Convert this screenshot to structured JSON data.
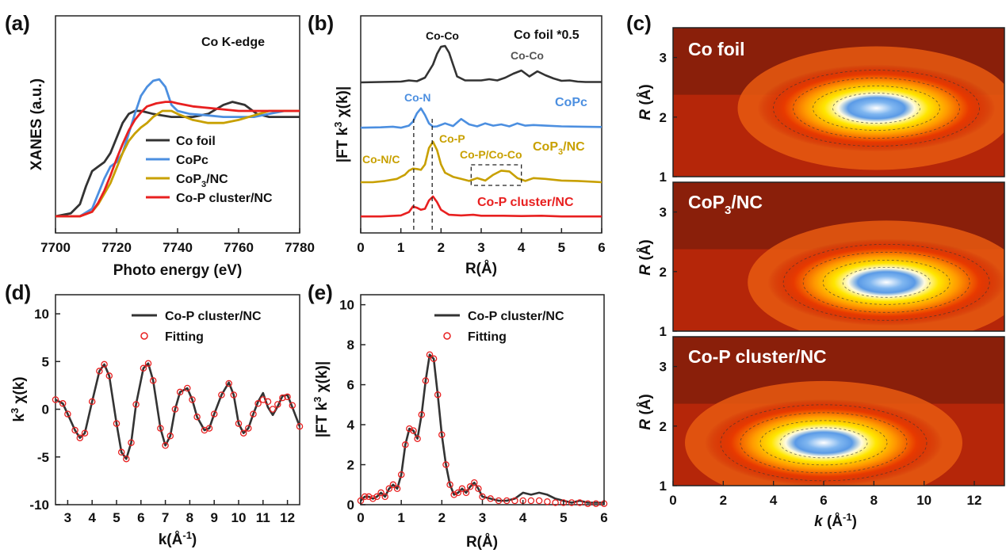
{
  "panels": {
    "a": "(a)",
    "b": "(b)",
    "c": "(c)",
    "d": "(d)",
    "e": "(e)"
  },
  "chart_data": [
    {
      "id": "a",
      "type": "line",
      "annotation": "Co K-edge",
      "xlabel": "Photo energy (eV)",
      "ylabel": "XANES (a.u.)",
      "xlim": [
        7700,
        7780
      ],
      "xticks": [
        7700,
        7720,
        7740,
        7760,
        7780
      ],
      "y_ticks_shown": false,
      "legend_position": "lower-right",
      "series": [
        {
          "name": "Co foil",
          "color": "#333333",
          "x": [
            7700,
            7705,
            7708,
            7710,
            7712,
            7714,
            7716,
            7718,
            7720,
            7722,
            7724,
            7726,
            7728,
            7730,
            7732,
            7735,
            7738,
            7740,
            7745,
            7750,
            7755,
            7758,
            7762,
            7766,
            7770,
            7775,
            7780
          ],
          "y": [
            0.0,
            0.02,
            0.08,
            0.2,
            0.3,
            0.33,
            0.36,
            0.42,
            0.52,
            0.62,
            0.68,
            0.7,
            0.7,
            0.69,
            0.68,
            0.67,
            0.66,
            0.66,
            0.66,
            0.68,
            0.74,
            0.76,
            0.74,
            0.68,
            0.66,
            0.66,
            0.66
          ]
        },
        {
          "name": "CoPc",
          "color": "#4c8fe0",
          "x": [
            7700,
            7708,
            7712,
            7714,
            7716,
            7718,
            7720,
            7722,
            7724,
            7726,
            7728,
            7730,
            7732,
            7734,
            7736,
            7738,
            7740,
            7744,
            7750,
            7755,
            7760,
            7765,
            7770,
            7775,
            7780
          ],
          "y": [
            0.0,
            0.0,
            0.05,
            0.15,
            0.25,
            0.33,
            0.36,
            0.42,
            0.55,
            0.68,
            0.8,
            0.86,
            0.9,
            0.91,
            0.86,
            0.74,
            0.7,
            0.68,
            0.67,
            0.66,
            0.66,
            0.66,
            0.68,
            0.7,
            0.7
          ]
        },
        {
          "name": "CoP3/NC",
          "color": "#c8a000",
          "x": [
            7700,
            7708,
            7712,
            7714,
            7716,
            7718,
            7720,
            7722,
            7724,
            7726,
            7728,
            7730,
            7732,
            7735,
            7738,
            7740,
            7745,
            7750,
            7755,
            7760,
            7765,
            7770,
            7775,
            7780
          ],
          "y": [
            0.0,
            0.0,
            0.03,
            0.08,
            0.15,
            0.22,
            0.32,
            0.42,
            0.5,
            0.55,
            0.59,
            0.62,
            0.66,
            0.7,
            0.7,
            0.68,
            0.64,
            0.62,
            0.62,
            0.64,
            0.67,
            0.7,
            0.7,
            0.7
          ]
        },
        {
          "name": "Co-P cluster/NC",
          "color": "#e82020",
          "x": [
            7700,
            7708,
            7712,
            7714,
            7716,
            7718,
            7720,
            7722,
            7724,
            7726,
            7728,
            7730,
            7733,
            7736,
            7738,
            7740,
            7745,
            7750,
            7755,
            7760,
            7765,
            7770,
            7775,
            7780
          ],
          "y": [
            0.0,
            0.0,
            0.03,
            0.09,
            0.17,
            0.27,
            0.38,
            0.48,
            0.57,
            0.64,
            0.69,
            0.73,
            0.75,
            0.76,
            0.76,
            0.75,
            0.73,
            0.72,
            0.71,
            0.7,
            0.7,
            0.7,
            0.7,
            0.7
          ]
        }
      ]
    },
    {
      "id": "b",
      "type": "line",
      "xlabel": "R(Å)",
      "ylabel": "|FT k3 χ(k)|",
      "xlim": [
        0,
        6
      ],
      "xticks": [
        0,
        1,
        2,
        3,
        4,
        5,
        6
      ],
      "y_ticks_shown": false,
      "dashed_lines_x": [
        1.32,
        1.78
      ],
      "dashed_box": {
        "x": [
          2.75,
          4.0
        ]
      },
      "annotations": [
        "Co-Co",
        "Co-Co",
        "Co-N",
        "Co-P",
        "Co-N/C",
        "Co-P/Co-Co"
      ],
      "series": [
        {
          "name": "Co foil *0.5",
          "color": "#333333",
          "x": [
            0,
            0.5,
            1,
            1.2,
            1.4,
            1.6,
            1.8,
            1.9,
            2.0,
            2.1,
            2.2,
            2.3,
            2.4,
            2.6,
            2.8,
            3.0,
            3.2,
            3.4,
            3.6,
            3.8,
            4.0,
            4.2,
            4.4,
            4.6,
            4.8,
            5.0,
            5.2,
            5.4,
            5.6,
            5.8,
            6.0
          ],
          "y": [
            0,
            0.01,
            0.02,
            0.05,
            0.03,
            0.12,
            0.45,
            0.72,
            0.9,
            0.92,
            0.75,
            0.45,
            0.15,
            0.05,
            0.05,
            0.05,
            0.08,
            0.05,
            0.12,
            0.22,
            0.3,
            0.15,
            0.28,
            0.18,
            0.1,
            0.04,
            0.05,
            0.02,
            0.01,
            0.01,
            0.01
          ]
        },
        {
          "name": "CoPc",
          "color": "#4c8fe0",
          "x": [
            0,
            0.5,
            0.8,
            1.0,
            1.2,
            1.3,
            1.4,
            1.5,
            1.6,
            1.7,
            1.8,
            1.9,
            2.1,
            2.3,
            2.5,
            2.7,
            2.9,
            3.1,
            3.3,
            3.5,
            3.7,
            3.9,
            4.1,
            4.3,
            4.6,
            5.0,
            5.5,
            6.0
          ],
          "y": [
            0.02,
            0.03,
            0.05,
            0.02,
            0.08,
            0.2,
            0.45,
            0.6,
            0.4,
            0.15,
            0.05,
            0.06,
            0.15,
            0.07,
            0.28,
            0.12,
            0.06,
            0.15,
            0.08,
            0.12,
            0.06,
            0.15,
            0.08,
            0.1,
            0.08,
            0.06,
            0.05,
            0.04
          ]
        },
        {
          "name": "CoP3/NC",
          "color": "#c8a000",
          "x": [
            0,
            0.3,
            0.6,
            0.9,
            1.1,
            1.2,
            1.3,
            1.4,
            1.5,
            1.6,
            1.7,
            1.8,
            1.9,
            2.0,
            2.1,
            2.3,
            2.5,
            2.7,
            2.9,
            3.1,
            3.3,
            3.5,
            3.7,
            3.9,
            4.1,
            4.3,
            4.6,
            5.0,
            5.4,
            5.8,
            6.0
          ],
          "y": [
            0.02,
            0.02,
            0.05,
            0.1,
            0.2,
            0.3,
            0.35,
            0.34,
            0.32,
            0.45,
            0.85,
            1.0,
            0.8,
            0.45,
            0.25,
            0.15,
            0.1,
            0.05,
            0.12,
            0.06,
            0.2,
            0.3,
            0.28,
            0.12,
            0.05,
            0.12,
            0.1,
            0.06,
            0.05,
            0.03,
            0.02
          ]
        },
        {
          "name": "Co-P cluster/NC",
          "color": "#e82020",
          "x": [
            0,
            0.5,
            1.0,
            1.2,
            1.3,
            1.4,
            1.5,
            1.6,
            1.7,
            1.8,
            1.9,
            2.0,
            2.2,
            2.5,
            2.8,
            3.0,
            3.5,
            4.0,
            4.5,
            5.0,
            5.5,
            6.0
          ],
          "y": [
            0.02,
            0.02,
            0.05,
            0.15,
            0.32,
            0.28,
            0.22,
            0.25,
            0.5,
            0.62,
            0.45,
            0.22,
            0.07,
            0.05,
            0.07,
            0.04,
            0.04,
            0.03,
            0.04,
            0.02,
            0.02,
            0.02
          ]
        }
      ]
    },
    {
      "id": "c",
      "type": "heatmap",
      "xlabel": "k (Å-1)",
      "ylabel": "R (Å)",
      "xlim": [
        0,
        13.2
      ],
      "xticks": [
        0,
        2,
        4,
        6,
        8,
        10,
        12
      ],
      "ylim": [
        1,
        3.5
      ],
      "yticks": [
        1,
        2,
        3
      ],
      "subplots": [
        {
          "title": "Co foil",
          "max_k": 8.1,
          "max_R": 2.15
        },
        {
          "title": "CoP3/NC",
          "max_k": 8.5,
          "max_R": 1.82
        },
        {
          "title": "Co-P cluster/NC",
          "max_k": 6.0,
          "max_R": 1.72
        }
      ]
    },
    {
      "id": "d",
      "type": "line",
      "xlabel": "k(Å-1)",
      "ylabel": "k3 χ(k)",
      "xlim": [
        2.5,
        12.5
      ],
      "xticks": [
        3,
        4,
        5,
        6,
        7,
        8,
        9,
        10,
        11,
        12
      ],
      "ylim": [
        -10,
        12
      ],
      "yticks": [
        -10,
        -5,
        0,
        5,
        10
      ],
      "legend_position": "top-right",
      "series": [
        {
          "name": "Co-P cluster/NC",
          "color": "#333333",
          "style": "line",
          "x": [
            2.5,
            2.8,
            3.0,
            3.3,
            3.5,
            3.7,
            4.0,
            4.3,
            4.5,
            4.7,
            5.0,
            5.2,
            5.4,
            5.6,
            5.8,
            6.1,
            6.3,
            6.5,
            6.8,
            7.0,
            7.2,
            7.4,
            7.6,
            7.9,
            8.1,
            8.3,
            8.6,
            8.8,
            9.0,
            9.3,
            9.6,
            9.8,
            10.0,
            10.2,
            10.4,
            10.6,
            10.8,
            11.0,
            11.2,
            11.4,
            11.6,
            11.8,
            12.0,
            12.2,
            12.5
          ],
          "y": [
            1.0,
            0.6,
            -0.5,
            -2.2,
            -3.0,
            -2.5,
            0.8,
            4.0,
            4.7,
            3.5,
            -1.5,
            -4.5,
            -5.2,
            -3.5,
            0.5,
            4.3,
            4.8,
            3.0,
            -2.0,
            -3.8,
            -2.8,
            0.0,
            1.8,
            2.2,
            1.0,
            -0.8,
            -2.2,
            -2.0,
            -0.5,
            1.5,
            2.8,
            1.5,
            -1.5,
            -2.5,
            -2.0,
            -0.5,
            0.8,
            1.7,
            0.2,
            -0.6,
            0.3,
            1.4,
            1.5,
            0.2,
            -1.8
          ]
        },
        {
          "name": "Fitting",
          "color": "#e82020",
          "style": "circles",
          "x": [
            2.5,
            2.8,
            3.0,
            3.3,
            3.5,
            3.7,
            4.0,
            4.3,
            4.5,
            4.7,
            5.0,
            5.2,
            5.4,
            5.6,
            5.8,
            6.1,
            6.3,
            6.5,
            6.8,
            7.0,
            7.2,
            7.4,
            7.6,
            7.9,
            8.1,
            8.3,
            8.6,
            8.8,
            9.0,
            9.3,
            9.6,
            9.8,
            10.0,
            10.2,
            10.4,
            10.6,
            10.8,
            11.0,
            11.2,
            11.4,
            11.6,
            11.8,
            12.0,
            12.2,
            12.5
          ],
          "y": [
            1.0,
            0.6,
            -0.5,
            -2.2,
            -3.0,
            -2.5,
            0.8,
            4.0,
            4.7,
            3.5,
            -1.5,
            -4.5,
            -5.2,
            -3.5,
            0.5,
            4.3,
            4.8,
            3.0,
            -2.0,
            -3.8,
            -2.8,
            0.0,
            1.8,
            2.2,
            1.0,
            -0.8,
            -2.2,
            -2.0,
            -0.5,
            1.5,
            2.7,
            1.5,
            -1.5,
            -2.5,
            -2.0,
            -0.5,
            0.6,
            1.0,
            0.8,
            0.0,
            0.5,
            1.2,
            1.3,
            0.4,
            -1.8
          ]
        }
      ]
    },
    {
      "id": "e",
      "type": "line",
      "xlabel": "R(Å)",
      "ylabel": "|FT k3 χ(k)|",
      "xlim": [
        0,
        6
      ],
      "xticks": [
        0,
        1,
        2,
        3,
        4,
        5,
        6
      ],
      "ylim": [
        0,
        10.5
      ],
      "yticks": [
        0,
        2,
        4,
        6,
        8,
        10
      ],
      "legend_position": "top-right",
      "series": [
        {
          "name": "Co-P cluster/NC",
          "color": "#333333",
          "style": "line",
          "x": [
            0,
            0.1,
            0.2,
            0.3,
            0.4,
            0.5,
            0.6,
            0.7,
            0.8,
            0.9,
            1.0,
            1.1,
            1.2,
            1.3,
            1.4,
            1.5,
            1.6,
            1.7,
            1.8,
            1.9,
            2.0,
            2.1,
            2.2,
            2.3,
            2.4,
            2.5,
            2.6,
            2.7,
            2.8,
            2.9,
            3.0,
            3.2,
            3.4,
            3.6,
            3.8,
            4.0,
            4.2,
            4.4,
            4.6,
            4.8,
            5.0,
            5.2,
            5.4,
            5.6,
            5.8,
            6.0
          ],
          "y": [
            0.2,
            0.4,
            0.4,
            0.3,
            0.4,
            0.6,
            0.4,
            0.8,
            1.0,
            0.8,
            1.5,
            3.0,
            3.8,
            3.7,
            3.3,
            4.5,
            6.2,
            7.5,
            7.3,
            5.5,
            3.5,
            2.0,
            1.0,
            0.5,
            0.6,
            0.8,
            0.6,
            0.9,
            1.1,
            0.8,
            0.4,
            0.3,
            0.2,
            0.2,
            0.3,
            0.6,
            0.5,
            0.6,
            0.5,
            0.3,
            0.2,
            0.1,
            0.2,
            0.1,
            0.1,
            0.1
          ]
        },
        {
          "name": "Fitting",
          "color": "#e82020",
          "style": "circles",
          "x": [
            0,
            0.1,
            0.2,
            0.3,
            0.4,
            0.5,
            0.6,
            0.7,
            0.8,
            0.9,
            1.0,
            1.1,
            1.2,
            1.3,
            1.4,
            1.5,
            1.6,
            1.7,
            1.8,
            1.9,
            2.0,
            2.1,
            2.2,
            2.3,
            2.4,
            2.5,
            2.6,
            2.7,
            2.8,
            2.9,
            3.0,
            3.2,
            3.4,
            3.6,
            3.8,
            4.0,
            4.2,
            4.4,
            4.6,
            4.8,
            5.0,
            5.2,
            5.4,
            5.6,
            5.8,
            6.0
          ],
          "y": [
            0.2,
            0.4,
            0.4,
            0.3,
            0.4,
            0.6,
            0.4,
            0.8,
            1.0,
            0.8,
            1.5,
            3.0,
            3.8,
            3.7,
            3.3,
            4.5,
            6.2,
            7.5,
            7.3,
            5.5,
            3.5,
            2.0,
            1.0,
            0.5,
            0.6,
            0.8,
            0.6,
            0.9,
            1.1,
            0.8,
            0.4,
            0.3,
            0.2,
            0.2,
            0.2,
            0.2,
            0.2,
            0.2,
            0.15,
            0.1,
            0.1,
            0.1,
            0.1,
            0.05,
            0.05,
            0.05
          ]
        }
      ]
    }
  ]
}
